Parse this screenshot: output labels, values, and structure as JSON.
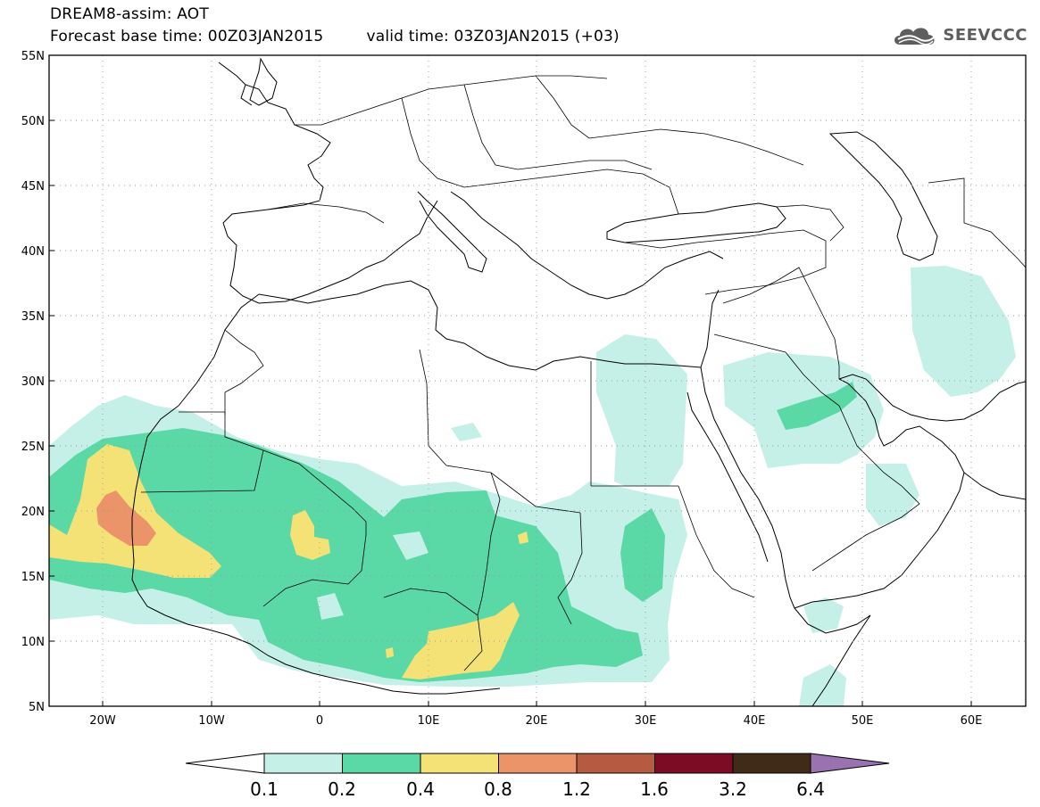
{
  "header": {
    "title_line1": "DREAM8-assim: AOT",
    "base_time": "Forecast base time: 00Z03JAN2015",
    "valid_time": "valid time: 03Z03JAN2015 (+03)"
  },
  "logo": {
    "text": "SEEVCCC",
    "icon": "cloud-icon"
  },
  "map": {
    "lon_range": [
      -25,
      65
    ],
    "lat_range": [
      5,
      55
    ],
    "grid": "dotted",
    "lat_labels": [
      "5N",
      "10N",
      "15N",
      "20N",
      "25N",
      "30N",
      "35N",
      "40N",
      "45N",
      "50N",
      "55N"
    ],
    "lon_labels": [
      "20W",
      "10W",
      "0",
      "10E",
      "20E",
      "30E",
      "40E",
      "50E",
      "60E"
    ]
  },
  "legend": {
    "levels": [
      "0.1",
      "0.2",
      "0.4",
      "0.8",
      "1.2",
      "1.6",
      "3.2",
      "6.4"
    ],
    "colors": [
      "#c4f0e8",
      "#5ad8a6",
      "#f5e276",
      "#eb9469",
      "#b65a42",
      "#7c0c24",
      "#3f2b18",
      "#9a72b0"
    ],
    "under_color": "#ffffff"
  },
  "colors": {
    "aot_01": "#c4f0e8",
    "aot_02": "#5ad8a6",
    "aot_04": "#f5e276",
    "aot_08": "#eb9469",
    "coastline": "#000000"
  }
}
